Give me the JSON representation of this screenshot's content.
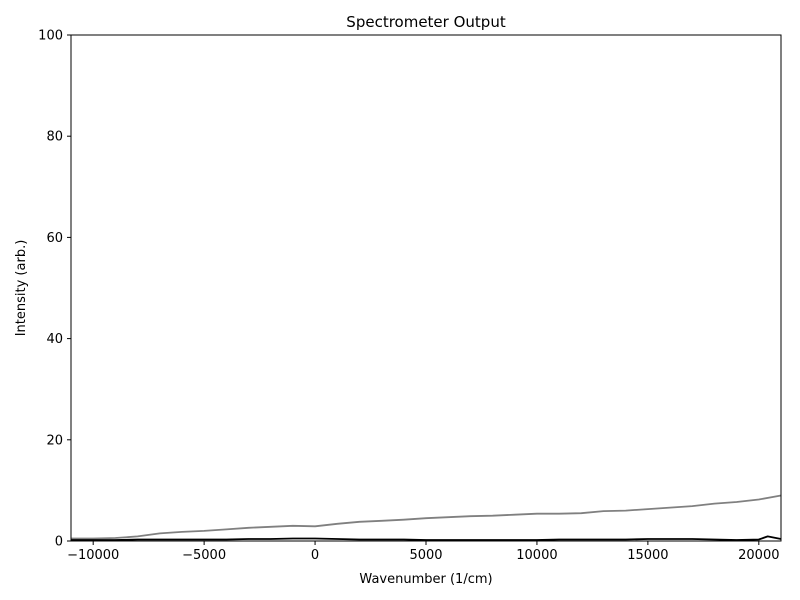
{
  "chart_data": {
    "type": "line",
    "title": "Spectrometer Output",
    "xlabel": "Wavenumber (1/cm)",
    "ylabel": "Intensity (arb.)",
    "xlim": [
      -11000,
      21000
    ],
    "ylim": [
      0,
      100
    ],
    "xticks": [
      -10000,
      -5000,
      0,
      5000,
      10000,
      15000,
      20000
    ],
    "xtick_labels": [
      "−10000",
      "−5000",
      "0",
      "5000",
      "10000",
      "15000",
      "20000"
    ],
    "yticks": [
      0,
      20,
      40,
      60,
      80,
      100
    ],
    "ytick_labels": [
      "0",
      "20",
      "40",
      "60",
      "80",
      "100"
    ],
    "grid": false,
    "legend": false,
    "series": [
      {
        "color": "#808080",
        "x": [
          -11000,
          -10000,
          -9000,
          -8000,
          -7000,
          -6000,
          -5000,
          -4000,
          -3000,
          -2000,
          -1000,
          0,
          1000,
          2000,
          3000,
          4000,
          5000,
          6000,
          7000,
          8000,
          9000,
          10000,
          11000,
          12000,
          13000,
          14000,
          15000,
          16000,
          17000,
          18000,
          19000,
          20000,
          21000
        ],
        "y": [
          0.5,
          0.5,
          0.6,
          0.9,
          1.5,
          1.8,
          2.0,
          2.3,
          2.6,
          2.8,
          3.0,
          2.9,
          3.4,
          3.8,
          4.0,
          4.2,
          4.5,
          4.7,
          4.9,
          5.0,
          5.2,
          5.4,
          5.4,
          5.5,
          5.9,
          6.0,
          6.3,
          6.6,
          6.9,
          7.4,
          7.7,
          8.2,
          9.0
        ]
      },
      {
        "color": "#000000",
        "x": [
          -11000,
          -10000,
          -9000,
          -8000,
          -7000,
          -6000,
          -5000,
          -4000,
          -3000,
          -2000,
          -1000,
          0,
          1000,
          2000,
          3000,
          4000,
          5000,
          6000,
          7000,
          8000,
          9000,
          10000,
          11000,
          12000,
          13000,
          14000,
          15000,
          16000,
          17000,
          18000,
          19000,
          20000,
          20400,
          21000
        ],
        "y": [
          0.2,
          0.2,
          0.2,
          0.3,
          0.3,
          0.3,
          0.3,
          0.3,
          0.4,
          0.4,
          0.5,
          0.5,
          0.4,
          0.3,
          0.3,
          0.3,
          0.2,
          0.2,
          0.2,
          0.2,
          0.2,
          0.2,
          0.3,
          0.3,
          0.3,
          0.3,
          0.4,
          0.4,
          0.4,
          0.3,
          0.2,
          0.3,
          0.9,
          0.4
        ]
      }
    ]
  }
}
